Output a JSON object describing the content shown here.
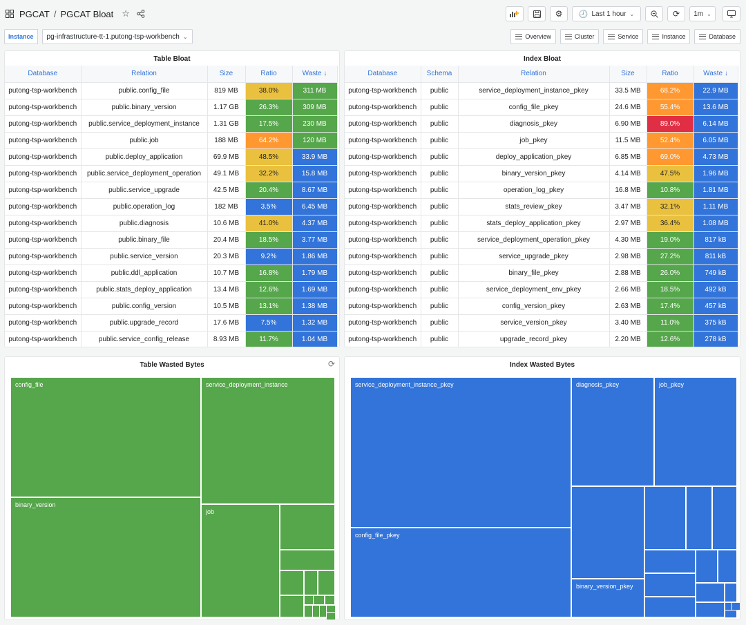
{
  "header": {
    "folder": "PGCAT",
    "separator": "/",
    "title": "PGCAT Bloat",
    "time_range": "Last 1 hour",
    "refresh": "1m"
  },
  "variable": {
    "label": "Instance",
    "value": "pg-infrastructure-tt-1.putong-tsp-workbench"
  },
  "links": [
    "Overview",
    "Cluster",
    "Service",
    "Instance",
    "Database"
  ],
  "table_bloat": {
    "title": "Table Bloat",
    "columns": [
      "Database",
      "Relation",
      "Size",
      "Ratio",
      "Waste ↓"
    ],
    "rows": [
      {
        "db": "putong-tsp-workbench",
        "relation": "public.config_file",
        "size": "819 MB",
        "ratio": "38.0%",
        "waste": "311 MB",
        "ratio_color": "yellow",
        "waste_color": "green"
      },
      {
        "db": "putong-tsp-workbench",
        "relation": "public.binary_version",
        "size": "1.17 GB",
        "ratio": "26.3%",
        "waste": "309 MB",
        "ratio_color": "green",
        "waste_color": "green"
      },
      {
        "db": "putong-tsp-workbench",
        "relation": "public.service_deployment_instance",
        "size": "1.31 GB",
        "ratio": "17.5%",
        "waste": "230 MB",
        "ratio_color": "green",
        "waste_color": "green"
      },
      {
        "db": "putong-tsp-workbench",
        "relation": "public.job",
        "size": "188 MB",
        "ratio": "64.2%",
        "waste": "120 MB",
        "ratio_color": "orange",
        "waste_color": "green"
      },
      {
        "db": "putong-tsp-workbench",
        "relation": "public.deploy_application",
        "size": "69.9 MB",
        "ratio": "48.5%",
        "waste": "33.9 MB",
        "ratio_color": "yellow",
        "waste_color": "blue"
      },
      {
        "db": "putong-tsp-workbench",
        "relation": "public.service_deployment_operation",
        "size": "49.1 MB",
        "ratio": "32.2%",
        "waste": "15.8 MB",
        "ratio_color": "yellow",
        "waste_color": "blue"
      },
      {
        "db": "putong-tsp-workbench",
        "relation": "public.service_upgrade",
        "size": "42.5 MB",
        "ratio": "20.4%",
        "waste": "8.67 MB",
        "ratio_color": "green",
        "waste_color": "blue"
      },
      {
        "db": "putong-tsp-workbench",
        "relation": "public.operation_log",
        "size": "182 MB",
        "ratio": "3.5%",
        "waste": "6.45 MB",
        "ratio_color": "blue",
        "waste_color": "blue"
      },
      {
        "db": "putong-tsp-workbench",
        "relation": "public.diagnosis",
        "size": "10.6 MB",
        "ratio": "41.0%",
        "waste": "4.37 MB",
        "ratio_color": "yellow",
        "waste_color": "blue"
      },
      {
        "db": "putong-tsp-workbench",
        "relation": "public.binary_file",
        "size": "20.4 MB",
        "ratio": "18.5%",
        "waste": "3.77 MB",
        "ratio_color": "green",
        "waste_color": "blue"
      },
      {
        "db": "putong-tsp-workbench",
        "relation": "public.service_version",
        "size": "20.3 MB",
        "ratio": "9.2%",
        "waste": "1.86 MB",
        "ratio_color": "blue",
        "waste_color": "blue"
      },
      {
        "db": "putong-tsp-workbench",
        "relation": "public.ddl_application",
        "size": "10.7 MB",
        "ratio": "16.8%",
        "waste": "1.79 MB",
        "ratio_color": "green",
        "waste_color": "blue"
      },
      {
        "db": "putong-tsp-workbench",
        "relation": "public.stats_deploy_application",
        "size": "13.4 MB",
        "ratio": "12.6%",
        "waste": "1.69 MB",
        "ratio_color": "green",
        "waste_color": "blue"
      },
      {
        "db": "putong-tsp-workbench",
        "relation": "public.config_version",
        "size": "10.5 MB",
        "ratio": "13.1%",
        "waste": "1.38 MB",
        "ratio_color": "green",
        "waste_color": "blue"
      },
      {
        "db": "putong-tsp-workbench",
        "relation": "public.upgrade_record",
        "size": "17.6 MB",
        "ratio": "7.5%",
        "waste": "1.32 MB",
        "ratio_color": "blue",
        "waste_color": "blue"
      },
      {
        "db": "putong-tsp-workbench",
        "relation": "public.service_config_release",
        "size": "8.93 MB",
        "ratio": "11.7%",
        "waste": "1.04 MB",
        "ratio_color": "green",
        "waste_color": "blue"
      }
    ]
  },
  "index_bloat": {
    "title": "Index Bloat",
    "columns": [
      "Database",
      "Schema",
      "Relation",
      "Size",
      "Ratio",
      "Waste ↓"
    ],
    "rows": [
      {
        "db": "putong-tsp-workbench",
        "schema": "public",
        "relation": "service_deployment_instance_pkey",
        "size": "33.5 MB",
        "ratio": "68.2%",
        "waste": "22.9 MB",
        "ratio_color": "orange",
        "waste_color": "blue"
      },
      {
        "db": "putong-tsp-workbench",
        "schema": "public",
        "relation": "config_file_pkey",
        "size": "24.6 MB",
        "ratio": "55.4%",
        "waste": "13.6 MB",
        "ratio_color": "orange",
        "waste_color": "blue"
      },
      {
        "db": "putong-tsp-workbench",
        "schema": "public",
        "relation": "diagnosis_pkey",
        "size": "6.90 MB",
        "ratio": "89.0%",
        "waste": "6.14 MB",
        "ratio_color": "red",
        "waste_color": "blue"
      },
      {
        "db": "putong-tsp-workbench",
        "schema": "public",
        "relation": "job_pkey",
        "size": "11.5 MB",
        "ratio": "52.4%",
        "waste": "6.05 MB",
        "ratio_color": "orange",
        "waste_color": "blue"
      },
      {
        "db": "putong-tsp-workbench",
        "schema": "public",
        "relation": "deploy_application_pkey",
        "size": "6.85 MB",
        "ratio": "69.0%",
        "waste": "4.73 MB",
        "ratio_color": "orange",
        "waste_color": "blue"
      },
      {
        "db": "putong-tsp-workbench",
        "schema": "public",
        "relation": "binary_version_pkey",
        "size": "4.14 MB",
        "ratio": "47.5%",
        "waste": "1.96 MB",
        "ratio_color": "yellow",
        "waste_color": "blue"
      },
      {
        "db": "putong-tsp-workbench",
        "schema": "public",
        "relation": "operation_log_pkey",
        "size": "16.8 MB",
        "ratio": "10.8%",
        "waste": "1.81 MB",
        "ratio_color": "green",
        "waste_color": "blue"
      },
      {
        "db": "putong-tsp-workbench",
        "schema": "public",
        "relation": "stats_review_pkey",
        "size": "3.47 MB",
        "ratio": "32.1%",
        "waste": "1.11 MB",
        "ratio_color": "yellow",
        "waste_color": "blue"
      },
      {
        "db": "putong-tsp-workbench",
        "schema": "public",
        "relation": "stats_deploy_application_pkey",
        "size": "2.97 MB",
        "ratio": "36.4%",
        "waste": "1.08 MB",
        "ratio_color": "yellow",
        "waste_color": "blue"
      },
      {
        "db": "putong-tsp-workbench",
        "schema": "public",
        "relation": "service_deployment_operation_pkey",
        "size": "4.30 MB",
        "ratio": "19.0%",
        "waste": "817 kB",
        "ratio_color": "green",
        "waste_color": "blue"
      },
      {
        "db": "putong-tsp-workbench",
        "schema": "public",
        "relation": "service_upgrade_pkey",
        "size": "2.98 MB",
        "ratio": "27.2%",
        "waste": "811 kB",
        "ratio_color": "green",
        "waste_color": "blue"
      },
      {
        "db": "putong-tsp-workbench",
        "schema": "public",
        "relation": "binary_file_pkey",
        "size": "2.88 MB",
        "ratio": "26.0%",
        "waste": "749 kB",
        "ratio_color": "green",
        "waste_color": "blue"
      },
      {
        "db": "putong-tsp-workbench",
        "schema": "public",
        "relation": "service_deployment_env_pkey",
        "size": "2.66 MB",
        "ratio": "18.5%",
        "waste": "492 kB",
        "ratio_color": "green",
        "waste_color": "blue"
      },
      {
        "db": "putong-tsp-workbench",
        "schema": "public",
        "relation": "config_version_pkey",
        "size": "2.63 MB",
        "ratio": "17.4%",
        "waste": "457 kB",
        "ratio_color": "green",
        "waste_color": "blue"
      },
      {
        "db": "putong-tsp-workbench",
        "schema": "public",
        "relation": "service_version_pkey",
        "size": "3.40 MB",
        "ratio": "11.0%",
        "waste": "375 kB",
        "ratio_color": "green",
        "waste_color": "blue"
      },
      {
        "db": "putong-tsp-workbench",
        "schema": "public",
        "relation": "upgrade_record_pkey",
        "size": "2.20 MB",
        "ratio": "12.6%",
        "waste": "278 kB",
        "ratio_color": "green",
        "waste_color": "blue"
      }
    ]
  },
  "table_wasted": {
    "title": "Table Wasted Bytes",
    "labels": [
      "config_file",
      "service_deployment_instance",
      "binary_version",
      "job"
    ],
    "color": "#56a64b"
  },
  "index_wasted": {
    "title": "Index Wasted Bytes",
    "labels": [
      "service_deployment_instance_pkey",
      "diagnosis_pkey",
      "job_pkey",
      "config_file_pkey",
      "binary_version_pkey"
    ],
    "color": "#3274d9"
  }
}
